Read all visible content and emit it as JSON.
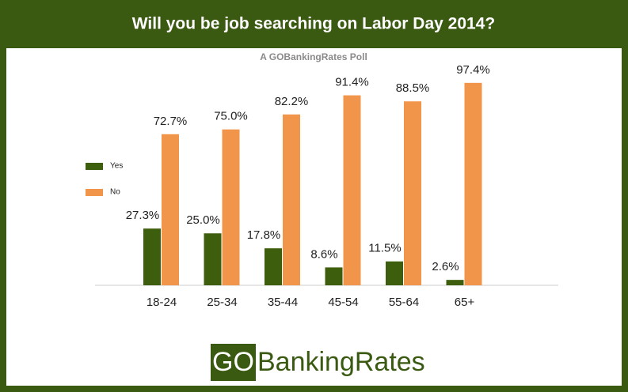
{
  "chart_data": {
    "type": "bar",
    "title": "Will you be job searching on Labor Day 2014?",
    "subtitle": "A GOBankingRates Poll",
    "categories": [
      "18-24",
      "25-34",
      "35-44",
      "45-54",
      "55-64",
      "65+"
    ],
    "series": [
      {
        "name": "Yes",
        "color": "#3d5e0c",
        "values": [
          27.3,
          25.0,
          17.8,
          8.6,
          11.5,
          2.6
        ],
        "value_labels": [
          "27.3%",
          "25.0%",
          "17.8%",
          "8.6%",
          "11.5%",
          "2.6%"
        ]
      },
      {
        "name": "No",
        "color": "#f0954a",
        "values": [
          72.7,
          75.0,
          82.2,
          91.4,
          88.5,
          97.4
        ],
        "value_labels": [
          "72.7%",
          "75.0%",
          "82.2%",
          "91.4%",
          "88.5%",
          "97.4%"
        ]
      }
    ],
    "ylim": [
      0,
      100
    ],
    "legend": "left"
  },
  "logo": {
    "prefix": "GO",
    "name": "BankingRates"
  }
}
